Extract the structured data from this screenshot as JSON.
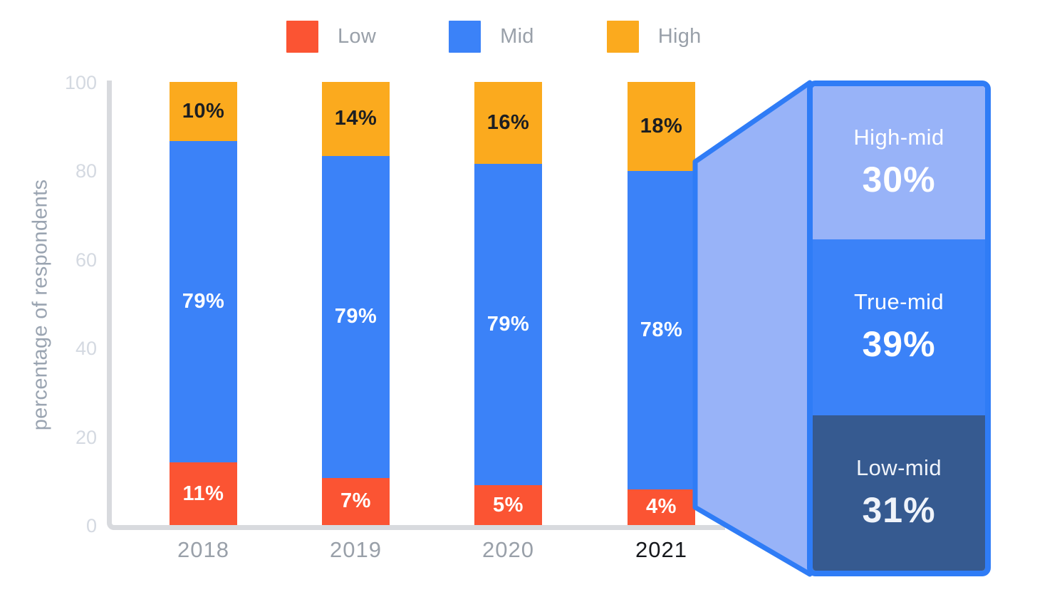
{
  "legend": {
    "items": [
      {
        "label": "Low",
        "color": "#FB5433"
      },
      {
        "label": "Mid",
        "color": "#3B82F8"
      },
      {
        "label": "High",
        "color": "#FBAA1E"
      }
    ]
  },
  "y_axis": {
    "title": "percentage of respondents",
    "ticks": [
      100,
      80,
      60,
      40,
      20,
      0
    ]
  },
  "chart_data": {
    "type": "bar",
    "subtype": "stacked-percentage",
    "categories": [
      "2018",
      "2019",
      "2020",
      "2021"
    ],
    "series": [
      {
        "name": "Low",
        "color": "#FB5433",
        "label_color": "#FFFFFF",
        "values": [
          11,
          7,
          5,
          4
        ]
      },
      {
        "name": "Mid",
        "color": "#3B82F8",
        "label_color": "#FFFFFF",
        "values": [
          79,
          79,
          79,
          78
        ]
      },
      {
        "name": "High",
        "color": "#FBAA1E",
        "label_color": "#1C1E22",
        "values": [
          10,
          14,
          16,
          18
        ]
      }
    ],
    "value_suffix": "%",
    "xlabel": "",
    "ylabel": "percentage of respondents",
    "ylim": [
      0,
      100
    ],
    "grid": false,
    "legend_position": "top",
    "highlighted_category": "2021"
  },
  "breakout": {
    "source_category": "2021",
    "source_series": "Mid",
    "segments": [
      {
        "label": "High-mid",
        "value": "30%",
        "pct": 30,
        "color": "#98B3F8",
        "text_color": "#FFFFFF"
      },
      {
        "label": "True-mid",
        "value": "39%",
        "pct": 39,
        "color": "#3B82F8",
        "text_color": "#FFFFFF"
      },
      {
        "label": "Low-mid",
        "value": "31%",
        "pct": 31,
        "color": "#365A90",
        "text_color": "#EFF3FA"
      }
    ],
    "outline_color": "#2F7CF6",
    "connector_fill": "#98B3F8"
  },
  "colors": {
    "axis_line": "#D8DADE",
    "tick_text": "#D4D9E1",
    "axis_title_text": "#9AA4B1",
    "year_text": "#99A0A9",
    "year_highlight_text": "#15171B"
  }
}
